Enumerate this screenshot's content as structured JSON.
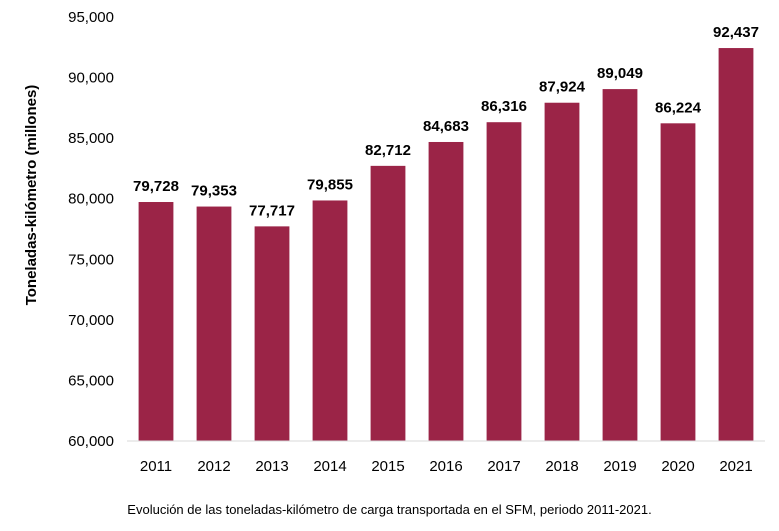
{
  "chart_data": {
    "type": "bar",
    "categories": [
      "2011",
      "2012",
      "2013",
      "2014",
      "2015",
      "2016",
      "2017",
      "2018",
      "2019",
      "2020",
      "2021"
    ],
    "values": [
      79728,
      79353,
      77717,
      79855,
      82712,
      84683,
      86316,
      87924,
      89049,
      86224,
      92437
    ],
    "data_labels": [
      "79,728",
      "79,353",
      "77,717",
      "79,855",
      "82,712",
      "84,683",
      "86,316",
      "87,924",
      "89,049",
      "86,224",
      "92,437"
    ],
    "ylabel": "Toneladas-kilómetro  (millones)",
    "xlabel": "",
    "ylim": [
      60000,
      95000
    ],
    "yticks": [
      60000,
      65000,
      70000,
      75000,
      80000,
      85000,
      90000,
      95000
    ],
    "ytick_labels": [
      "60,000",
      "65,000",
      "70,000",
      "75,000",
      "80,000",
      "85,000",
      "90,000",
      "95,000"
    ],
    "grid": false,
    "bar_color": "#9B2447"
  },
  "caption": "Evolución de las toneladas-kilómetro de carga transportada en el SFM, periodo 2011-2021."
}
